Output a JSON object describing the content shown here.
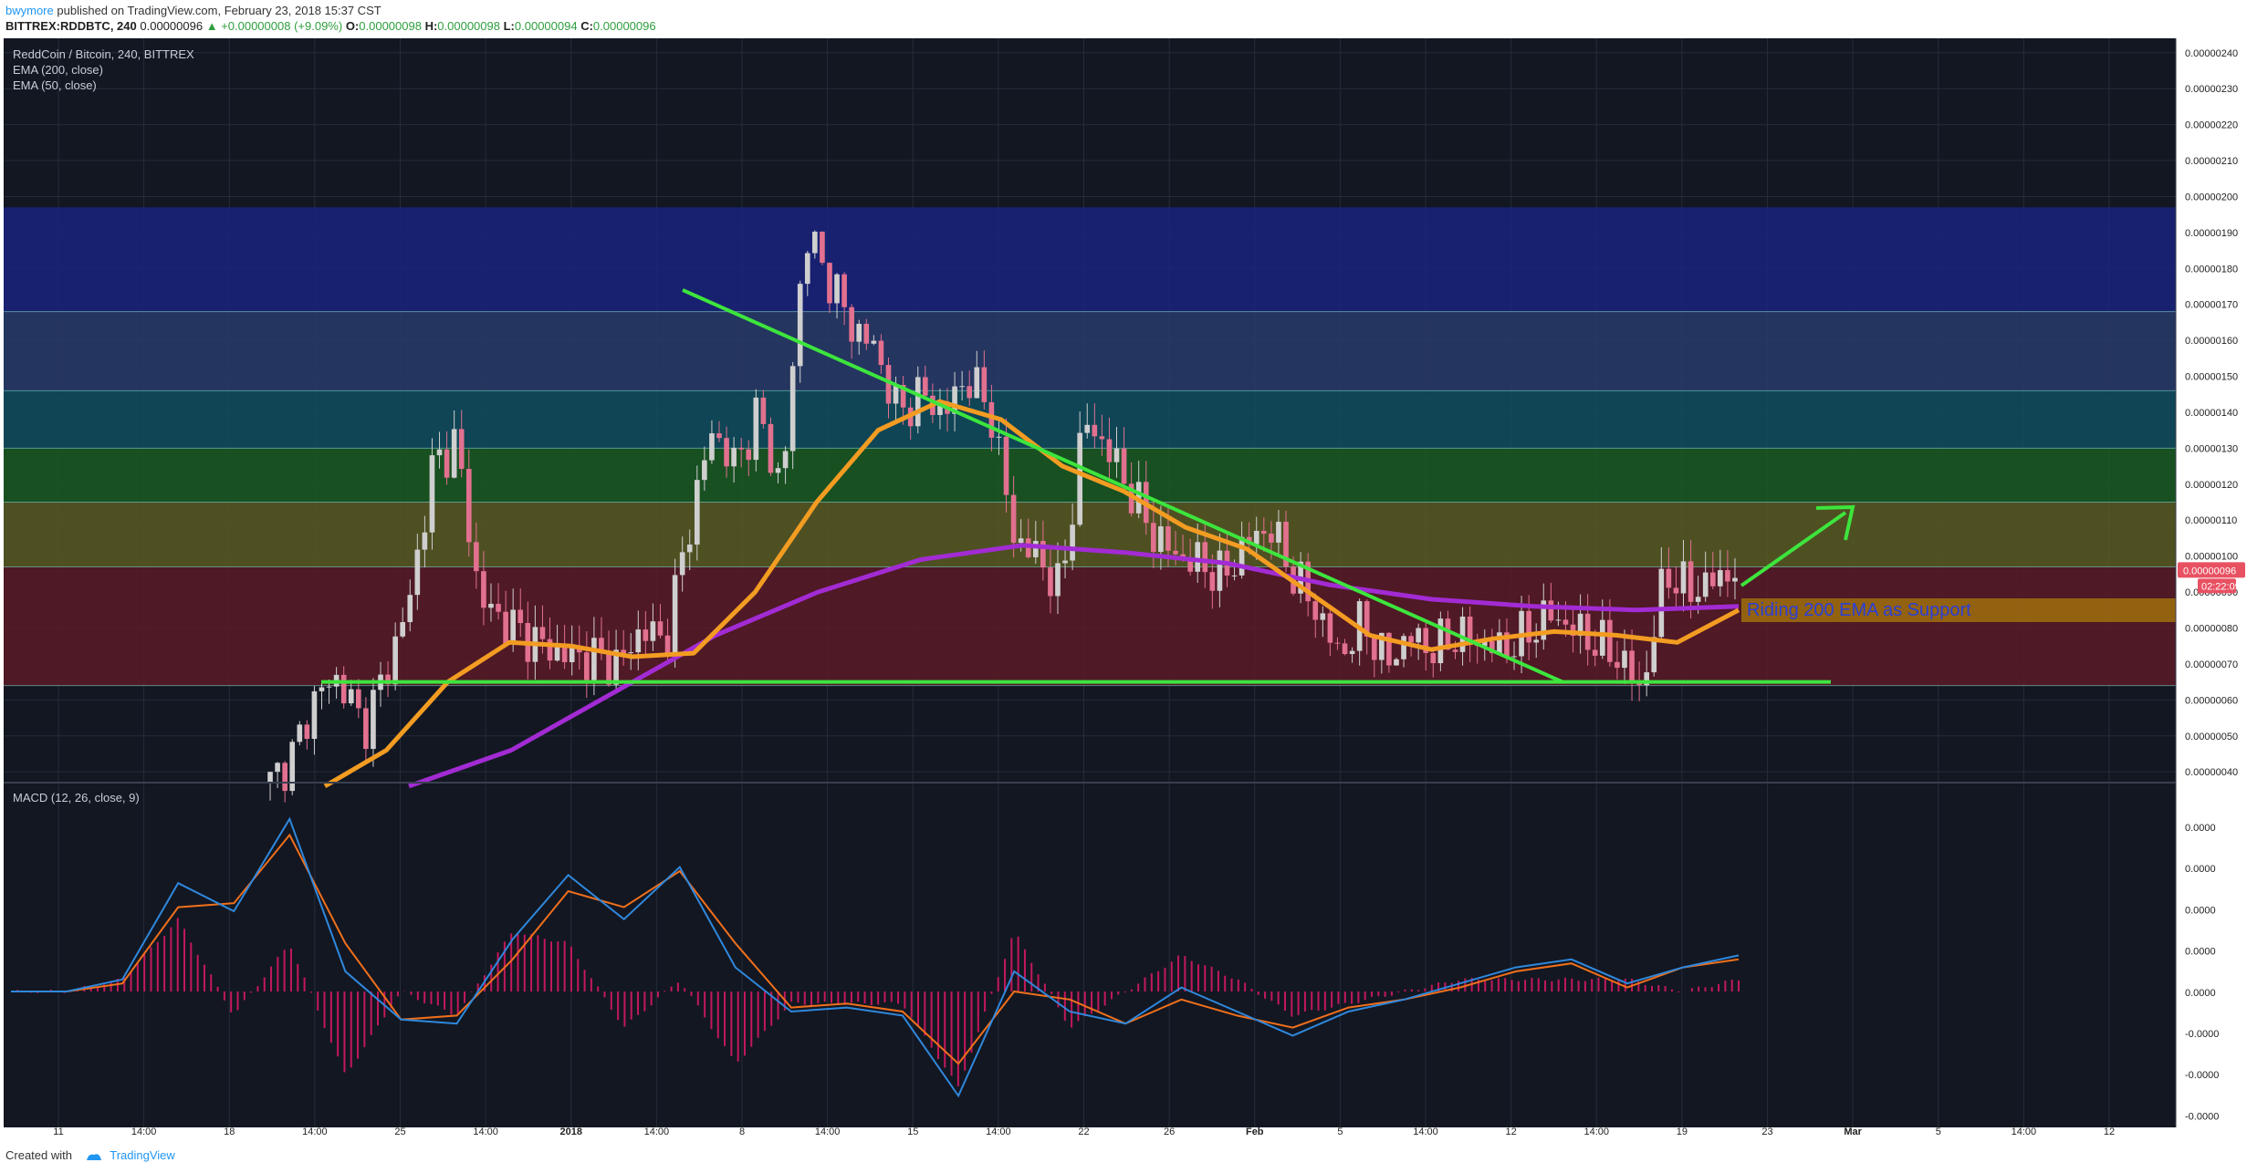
{
  "header": {
    "user": "bwymore",
    "published_text": "published on TradingView.com, February 23, 2018 15:37 CST",
    "symbol_line": "BITTREX:RDDBTC, 240",
    "price": "0.00000096",
    "change_icon": "up-triangle-icon",
    "change": "+0.00000008 (+9.09%)",
    "ohlc": [
      {
        "label": "O:",
        "value": "0.00000098"
      },
      {
        "label": "H:",
        "value": "0.00000098"
      },
      {
        "label": "L:",
        "value": "0.00000094"
      },
      {
        "label": "C:",
        "value": "0.00000096"
      }
    ]
  },
  "footer": {
    "created_with": "Created with",
    "brand": "TradingView",
    "logo_icon": "tradingview-logo-icon"
  },
  "colors": {
    "background": "#131722",
    "grid": "#262b3b",
    "text": "#c8cdd8",
    "ema200": "#a22bd3",
    "ema50": "#f39c22",
    "trendline": "#3de53d",
    "arrow": "#3de53d",
    "candle_up": "#cfcfcf",
    "candle_down": "#e2708f",
    "macd_line": "#2f88dc",
    "signal_line": "#f0701c",
    "histogram": "#c2185b",
    "price_tag": "#e85162",
    "annotation_box": "#9a6a10",
    "annotation_text": "#2a3fd8"
  },
  "chart_data": [
    {
      "type": "candlestick",
      "title": "ReddCoin / Bitcoin, 240, BITTREX",
      "legend": [
        "EMA (200, close)",
        "EMA (50, close)"
      ],
      "x_tick_labels": [
        "11",
        "14:00",
        "18",
        "14:00",
        "25",
        "14:00",
        "2018",
        "14:00",
        "8",
        "14:00",
        "15",
        "14:00",
        "22",
        "26",
        "Feb",
        "5",
        "14:00",
        "12",
        "14:00",
        "19",
        "23",
        "Mar",
        "5",
        "14:00",
        "12"
      ],
      "y_tick_labels": [
        "0.00000240",
        "0.00000230",
        "0.00000220",
        "0.00000210",
        "0.00000200",
        "0.00000190",
        "0.00000180",
        "0.00000170",
        "0.00000160",
        "0.00000150",
        "0.00000140",
        "0.00000130",
        "0.00000120",
        "0.00000110",
        "0.00000100",
        "0.00000090",
        "0.00000080",
        "0.00000070",
        "0.00000060",
        "0.00000050",
        "0.00000040"
      ],
      "ylim": [
        3.7e-07,
        2.44e-06
      ],
      "current_price_label": "0.00000096",
      "countdown_label": "02:22:09",
      "fib_zones": [
        {
          "from": 1.97e-06,
          "to": 1.68e-06,
          "color": "#1a237e"
        },
        {
          "from": 1.68e-06,
          "to": 1.46e-06,
          "color": "#283b6a"
        },
        {
          "from": 1.46e-06,
          "to": 1.3e-06,
          "color": "#0f4d5e"
        },
        {
          "from": 1.3e-06,
          "to": 1.15e-06,
          "color": "#1a5a22"
        },
        {
          "from": 1.15e-06,
          "to": 9.7e-07,
          "color": "#595a22"
        },
        {
          "from": 9.7e-07,
          "to": 6.4e-07,
          "color": "#5a1a26"
        }
      ],
      "fib_lines": [
        1.68e-06,
        1.46e-06,
        1.3e-06,
        1.15e-06,
        9.7e-07,
        6.4e-07
      ],
      "support_line": 6.5e-07,
      "resistance_trendline": {
        "from": 1.74e-06,
        "to": 6.5e-07
      },
      "annotation": "Riding 200 EMA as Support",
      "close_path": [
        3.7e-07,
        4.5e-07,
        6.2e-07,
        6.6e-07,
        5.2e-07,
        6.8e-07,
        8.8e-07,
        1.25e-06,
        1.32e-06,
        8.8e-07,
        8.2e-07,
        7.8e-07,
        7.4e-07,
        7.2e-07,
        7.2e-07,
        7e-07,
        8e-07,
        7.6e-07,
        1.08e-06,
        1.35e-06,
        1.25e-06,
        1.4e-06,
        1.18e-06,
        1.9e-06,
        1.78e-06,
        1.64e-06,
        1.58e-06,
        1.4e-06,
        1.45e-06,
        1.4e-06,
        1.5e-06,
        1.4e-06,
        1.05e-06,
        1e-06,
        9e-07,
        1.38e-06,
        1.3e-06,
        1.18e-06,
        1.06e-06,
        1e-06,
        9.8e-07,
        9.4e-07,
        1.04e-06,
        1.08e-06,
        9.5e-07,
        8.5e-07,
        7.2e-07,
        8.2e-07,
        7e-07,
        7.8e-07,
        7.4e-07,
        7.8e-07,
        7.6e-07,
        7.4e-07,
        7.8e-07,
        8.4e-07,
        8e-07,
        7.6e-07,
        7.2e-07,
        6.2e-07,
        9.6e-07,
        9e-07,
        9.3e-07,
        9.6e-07
      ],
      "ema200": [
        3.6e-07,
        4.6e-07,
        6.2e-07,
        7.8e-07,
        9e-07,
        9.9e-07,
        1.03e-06,
        1.01e-06,
        9.8e-07,
        9.2e-07,
        8.8e-07,
        8.6e-07,
        8.5e-07,
        8.6e-07
      ],
      "ema50": [
        3.6e-07,
        4.6e-07,
        6.5e-07,
        7.6e-07,
        7.5e-07,
        7.2e-07,
        7.3e-07,
        9e-07,
        1.15e-06,
        1.35e-06,
        1.43e-06,
        1.38e-06,
        1.25e-06,
        1.18e-06,
        1.08e-06,
        1.02e-06,
        9e-07,
        7.8e-07,
        7.4e-07,
        7.7e-07,
        7.9e-07,
        7.8e-07,
        7.6e-07,
        8.5e-07
      ]
    },
    {
      "type": "line",
      "title": "MACD (12, 26, close, 9)",
      "y_tick_labels": [
        "0.0000",
        "0.0000",
        "0.0000",
        "0.0000",
        "0.0000",
        "-0.0000",
        "-0.0000",
        "-0.0000"
      ],
      "series": [
        {
          "name": "MACD",
          "values": [
            0,
            0,
            0.3,
            2.7,
            2.0,
            4.3,
            0.5,
            -0.7,
            -0.8,
            1.3,
            2.9,
            1.8,
            3.1,
            0.6,
            -0.5,
            -0.4,
            -0.6,
            -2.6,
            0.5,
            -0.5,
            -0.8,
            0.1,
            -0.5,
            -1.1,
            -0.5,
            -0.2,
            0.2,
            0.6,
            0.8,
            0.2,
            0.6,
            0.9
          ]
        },
        {
          "name": "Signal",
          "values": [
            0,
            0,
            0.2,
            2.1,
            2.2,
            3.9,
            1.2,
            -0.7,
            -0.6,
            0.8,
            2.5,
            2.1,
            3.0,
            1.2,
            -0.4,
            -0.3,
            -0.5,
            -1.8,
            0,
            -0.2,
            -0.8,
            -0.2,
            -0.6,
            -0.9,
            -0.4,
            -0.2,
            0.1,
            0.5,
            0.7,
            0.1,
            0.6,
            0.8
          ]
        }
      ]
    }
  ]
}
